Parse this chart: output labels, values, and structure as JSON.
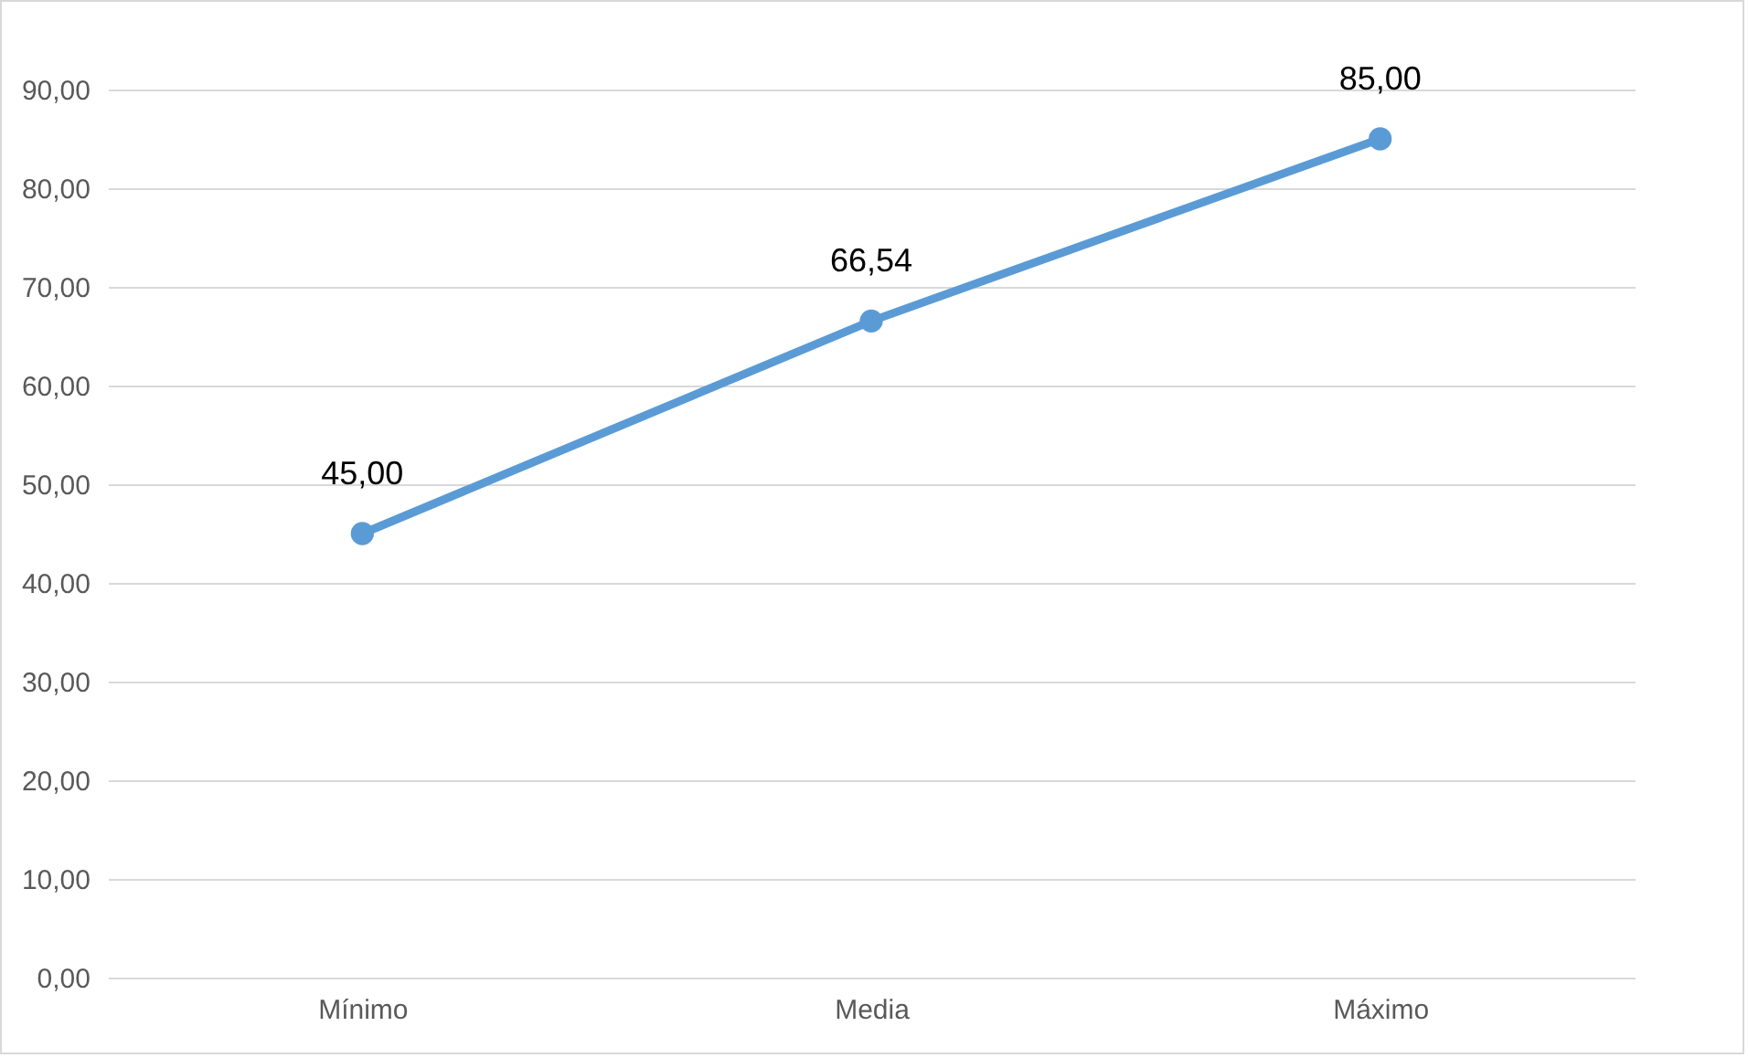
{
  "chart_data": {
    "type": "line",
    "categories": [
      "Mínimo",
      "Media",
      "Máximo"
    ],
    "series": [
      {
        "color": "#5b9bd5",
        "values": [
          45,
          66.54,
          85
        ],
        "value_labels": [
          "45,00",
          "66,54",
          "85,00"
        ]
      }
    ],
    "ylim": [
      0,
      90
    ],
    "yticks": [
      {
        "value": 0,
        "label": "0,00"
      },
      {
        "value": 10,
        "label": "10,00"
      },
      {
        "value": 20,
        "label": "20,00"
      },
      {
        "value": 30,
        "label": "30,00"
      },
      {
        "value": 40,
        "label": "40,00"
      },
      {
        "value": 50,
        "label": "50,00"
      },
      {
        "value": 60,
        "label": "60,00"
      },
      {
        "value": 70,
        "label": "70,00"
      },
      {
        "value": 80,
        "label": "80,00"
      },
      {
        "value": 90,
        "label": "90,00"
      }
    ],
    "grid": "y",
    "marker": "circle",
    "line_style": "solid"
  }
}
